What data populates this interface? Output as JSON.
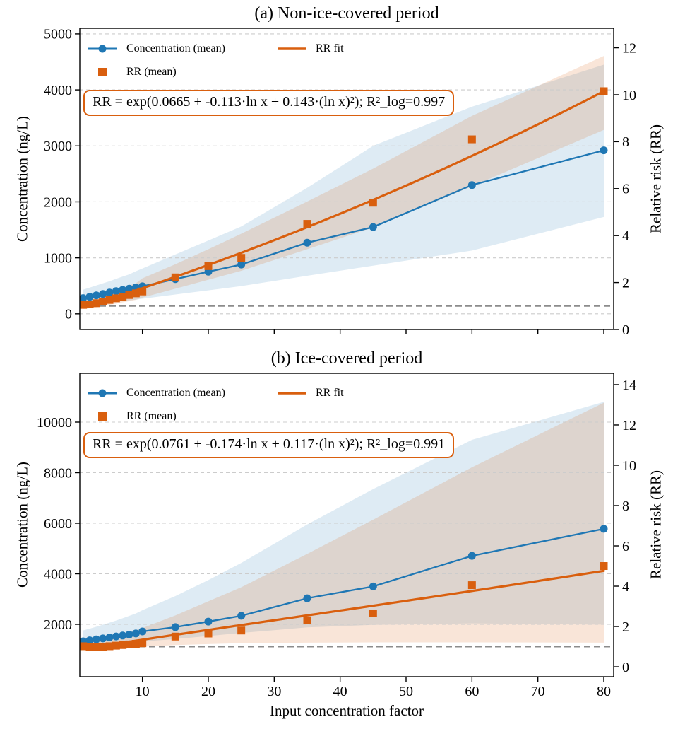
{
  "figure": {
    "xlabel": "Input concentration factor",
    "x_ticks": [
      10,
      20,
      30,
      40,
      50,
      60,
      70,
      80
    ],
    "colors": {
      "blue": "#1f77b4",
      "orange": "#d95f0e",
      "grid": "#cccccc",
      "baseline": "#8c8c8c",
      "axis": "#000000",
      "blue_band": "rgba(31,119,180,0.15)",
      "orange_band": "rgba(217,95,14,0.16)"
    }
  },
  "chart_data": [
    {
      "type": "line",
      "title": "(a) Non-ice-covered period",
      "ylabel_left": "Concentration (ng/L)",
      "ylabel_right": "Relative risk (RR)",
      "equation": "RR = exp(0.0665 + -0.113·ln x + 0.143·(ln x)²);  R²_log=0.997",
      "xlim": [
        0.5,
        81.5
      ],
      "ylim_left": [
        -280,
        5100
      ],
      "yticks_left": [
        0,
        1000,
        2000,
        3000,
        4000,
        5000
      ],
      "ylim_right": [
        0,
        12.83
      ],
      "yticks_right": [
        0,
        2,
        4,
        6,
        8,
        10,
        12
      ],
      "rr_baseline": 1,
      "grid": true,
      "show_x_tick_labels": false,
      "x": [
        1,
        2,
        3,
        4,
        5,
        6,
        7,
        8,
        9,
        10,
        15,
        20,
        25,
        35,
        45,
        60,
        80
      ],
      "series": [
        {
          "name": "Concentration (mean)",
          "axis": "left",
          "kind": "line+circle",
          "values": [
            280,
            305,
            330,
            355,
            380,
            405,
            428,
            450,
            470,
            492,
            620,
            752,
            880,
            1270,
            1550,
            2300,
            2920
          ]
        },
        {
          "name": "RR (mean)",
          "axis": "right",
          "kind": "square",
          "values": [
            1.05,
            1.07,
            1.12,
            1.19,
            1.26,
            1.33,
            1.4,
            1.47,
            1.54,
            1.62,
            2.22,
            2.7,
            3.05,
            4.5,
            5.4,
            8.1,
            10.15
          ]
        },
        {
          "name": "RR fit",
          "axis": "right",
          "kind": "fit",
          "coeffs": [
            0.0665,
            -0.113,
            0.143
          ]
        }
      ],
      "bands": [
        {
          "axis": "left",
          "fill": "blue_band",
          "lower": [
            150,
            163,
            176,
            189,
            202,
            215,
            228,
            241,
            254,
            270,
            345,
            420,
            495,
            680,
            860,
            1130,
            1730
          ],
          "upper": [
            430,
            468,
            506,
            544,
            582,
            625,
            665,
            705,
            760,
            810,
            1060,
            1310,
            1560,
            2250,
            3000,
            3700,
            4450
          ]
        },
        {
          "axis": "right",
          "fill": "orange_band",
          "lower": [
            0.88,
            0.9,
            0.94,
            0.99,
            1.05,
            1.1,
            1.16,
            1.21,
            1.26,
            1.36,
            1.74,
            2.12,
            2.5,
            3.42,
            4.35,
            6.1,
            8.5
          ],
          "upper": [
            1.3,
            1.3,
            1.38,
            1.47,
            1.58,
            1.67,
            1.77,
            1.87,
            1.97,
            2.18,
            2.78,
            3.42,
            4.08,
            5.45,
            6.85,
            9.1,
            11.65
          ]
        }
      ]
    },
    {
      "type": "line",
      "title": "(b) Ice-covered period",
      "ylabel_left": "Concentration (ng/L)",
      "ylabel_right": "Relative risk (RR)",
      "equation": "RR = exp(0.0761 + -0.174·ln x + 0.117·(ln x)²);  R²_log=0.991",
      "xlim": [
        0.5,
        81.5
      ],
      "ylim_left": [
        -70,
        11930
      ],
      "yticks_left": [
        2000,
        4000,
        6000,
        8000,
        10000
      ],
      "ylim_right": [
        -0.49,
        14.56
      ],
      "yticks_right": [
        0,
        2,
        4,
        6,
        8,
        10,
        12,
        14
      ],
      "rr_baseline": 1,
      "grid": true,
      "show_x_tick_labels": true,
      "x": [
        1,
        2,
        3,
        4,
        5,
        6,
        7,
        8,
        9,
        10,
        15,
        20,
        25,
        35,
        45,
        60,
        80
      ],
      "series": [
        {
          "name": "Concentration (mean)",
          "axis": "left",
          "kind": "line+circle",
          "values": [
            1330,
            1368,
            1406,
            1444,
            1482,
            1520,
            1558,
            1596,
            1640,
            1720,
            1890,
            2110,
            2340,
            3030,
            3500,
            4710,
            5780
          ]
        },
        {
          "name": "RR (mean)",
          "axis": "right",
          "kind": "square",
          "values": [
            1.02,
            0.98,
            0.97,
            0.99,
            1.02,
            1.05,
            1.08,
            1.11,
            1.14,
            1.17,
            1.5,
            1.65,
            1.8,
            2.3,
            2.65,
            4.05,
            5.0
          ]
        },
        {
          "name": "RR fit",
          "axis": "right",
          "kind": "fit",
          "coeffs": [
            0.0761,
            -0.174,
            0.117
          ]
        }
      ],
      "bands": [
        {
          "axis": "left",
          "fill": "blue_band",
          "lower": [
            1040,
            1070,
            1100,
            1130,
            1160,
            1190,
            1220,
            1250,
            1280,
            1320,
            1420,
            1540,
            1660,
            1880,
            1980,
            2040,
            1990
          ],
          "upper": [
            1760,
            1830,
            1905,
            1985,
            2065,
            2150,
            2240,
            2335,
            2430,
            2560,
            3120,
            3750,
            4430,
            5950,
            7350,
            9300,
            10800
          ]
        },
        {
          "axis": "right",
          "fill": "orange_band",
          "lower": [
            0.9,
            0.86,
            0.86,
            0.88,
            0.9,
            0.92,
            0.94,
            0.96,
            0.98,
            1.0,
            1.08,
            1.13,
            1.17,
            1.2,
            1.21,
            1.21,
            1.2
          ],
          "upper": [
            1.3,
            1.24,
            1.3,
            1.38,
            1.46,
            1.55,
            1.63,
            1.72,
            1.8,
            1.92,
            2.55,
            3.25,
            3.95,
            5.6,
            7.3,
            9.9,
            13.1
          ]
        }
      ]
    }
  ]
}
